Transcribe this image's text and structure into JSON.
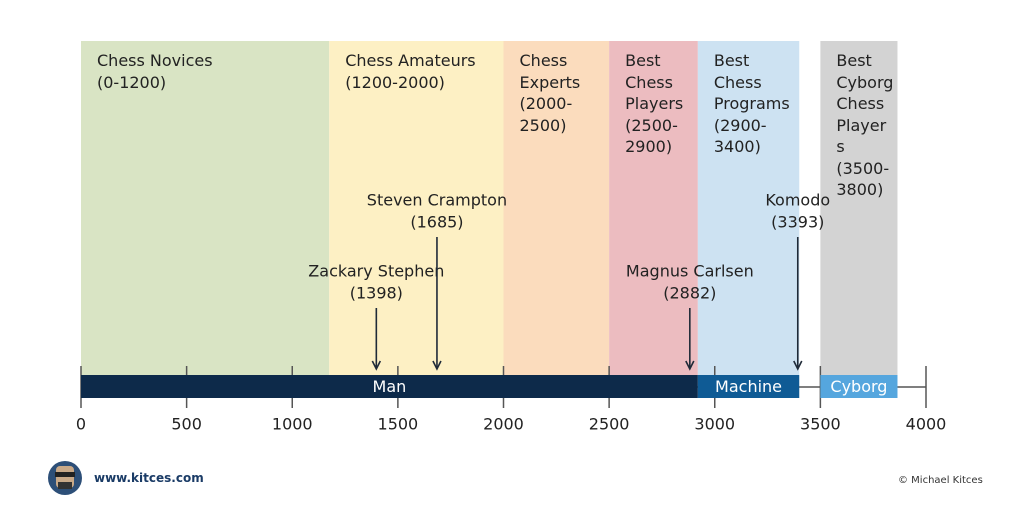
{
  "chart_data": {
    "type": "range",
    "xlim": [
      0,
      4000
    ],
    "xticks": [
      0,
      500,
      1000,
      1500,
      2000,
      2500,
      3000,
      3500,
      4000
    ],
    "bands": [
      {
        "name": "Chess Novices",
        "range_label": "(0-1200)",
        "start": 0,
        "end": 1175,
        "color": "#d9e4c4"
      },
      {
        "name": "Chess Amateurs",
        "range_label": "(1200-2000)",
        "start": 1175,
        "end": 2000,
        "color": "#fdf0c4"
      },
      {
        "name": "Chess Experts",
        "range_label": "(2000-2500)",
        "start": 2000,
        "end": 2500,
        "color": "#fbdcbd"
      },
      {
        "name": "Best Chess Players",
        "range_label": "(2500-2900)",
        "start": 2500,
        "end": 2920,
        "color": "#ecbcc0"
      },
      {
        "name": "Best Chess Programs",
        "range_label": "(2900-3400)",
        "start": 2920,
        "end": 3400,
        "color": "#cde2f2"
      },
      {
        "name": "Best Cyborg Chess Players",
        "range_label": "(3500-3800)",
        "start": 3500,
        "end": 3865,
        "color": "#d3d3d3"
      }
    ],
    "segments": [
      {
        "name": "Man",
        "start": 0,
        "end": 2920,
        "color": "#0d2a4a"
      },
      {
        "name": "Machine",
        "start": 2920,
        "end": 3400,
        "color": "#0f5b95"
      },
      {
        "name": "Cyborg",
        "start": 3500,
        "end": 3865,
        "color": "#55a6de"
      }
    ],
    "players": [
      {
        "name": "Zackary Stephen",
        "value": 1398,
        "value_label": "(1398)"
      },
      {
        "name": "Steven Crampton",
        "value": 1685,
        "value_label": "(1685)"
      },
      {
        "name": "Magnus Carlsen",
        "value": 2882,
        "value_label": "(2882)"
      },
      {
        "name": "Komodo",
        "value": 3393,
        "value_label": "(3393)"
      }
    ]
  },
  "footer": {
    "website": "www.kitces.com",
    "credit": "© Michael Kitces"
  }
}
